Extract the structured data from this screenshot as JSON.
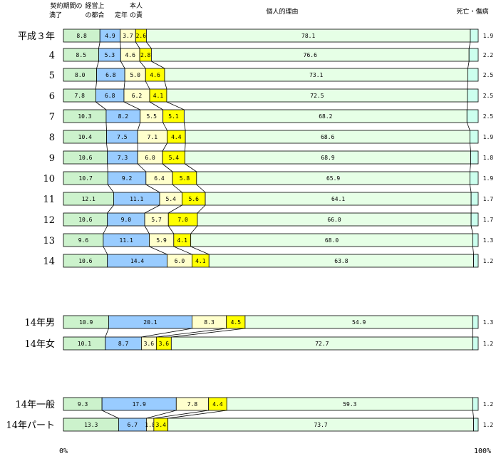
{
  "chart_data": {
    "type": "bar",
    "stacked": "percent-horizontal",
    "headers": [
      "契約期間の満了",
      "経営上の都合",
      "定年",
      "本人の責",
      "個人的理由",
      "死亡・傷病"
    ],
    "series": [
      {
        "key": "s1",
        "fill": "#ccf2cc",
        "labels_shown": false
      },
      {
        "key": "s2",
        "fill": "#99ccff",
        "labels_shown": false
      },
      {
        "key": "s3",
        "fill": "#ffffcc",
        "labels_shown": false
      },
      {
        "key": "s4",
        "fill": "#ffff00",
        "labels_shown": false
      },
      {
        "key": "s5",
        "fill": "#e6ffe6",
        "labels_shown": false
      },
      {
        "key": "s6",
        "fill": "#ccffee",
        "labels_shown": false
      }
    ],
    "categories": [
      "平成３年",
      "4",
      "5",
      "6",
      "7",
      "8",
      "9",
      "10",
      "11",
      "12",
      "13",
      "14",
      "14年男",
      "14年女",
      "14年一般",
      "14年パート"
    ],
    "rows": [
      [
        8.8,
        4.9,
        3.7,
        2.6,
        78.1,
        1.9
      ],
      [
        8.5,
        5.3,
        4.6,
        2.8,
        76.6,
        2.2
      ],
      [
        8.0,
        6.8,
        5.0,
        4.6,
        73.1,
        2.5
      ],
      [
        7.8,
        6.8,
        6.2,
        4.1,
        72.5,
        2.5
      ],
      [
        10.3,
        8.2,
        5.5,
        5.1,
        68.2,
        2.5
      ],
      [
        10.4,
        7.5,
        7.1,
        4.4,
        68.6,
        1.9
      ],
      [
        10.6,
        7.3,
        6.0,
        5.4,
        68.9,
        1.8
      ],
      [
        10.7,
        9.2,
        6.4,
        5.8,
        65.9,
        1.9
      ],
      [
        12.1,
        11.1,
        5.4,
        5.6,
        64.1,
        1.7
      ],
      [
        10.6,
        9.0,
        5.7,
        7.0,
        66.0,
        1.7
      ],
      [
        9.6,
        11.1,
        5.9,
        4.1,
        68.0,
        1.3
      ],
      [
        10.6,
        14.4,
        6.0,
        4.1,
        63.8,
        1.2
      ],
      [
        10.9,
        20.1,
        8.3,
        4.5,
        54.9,
        1.3
      ],
      [
        10.1,
        8.7,
        3.6,
        3.6,
        72.7,
        1.2
      ],
      [
        9.3,
        17.9,
        7.8,
        4.4,
        59.3,
        1.2
      ],
      [
        13.3,
        6.7,
        1.8,
        3.4,
        73.7,
        1.2
      ]
    ],
    "row_groups": [
      [
        0,
        11
      ],
      [
        12,
        13
      ],
      [
        14,
        15
      ]
    ],
    "x_ticks": [
      "0%",
      "100%"
    ],
    "xlim": [
      0,
      100
    ],
    "grid": false,
    "legend": "top (column headers above bars)"
  }
}
